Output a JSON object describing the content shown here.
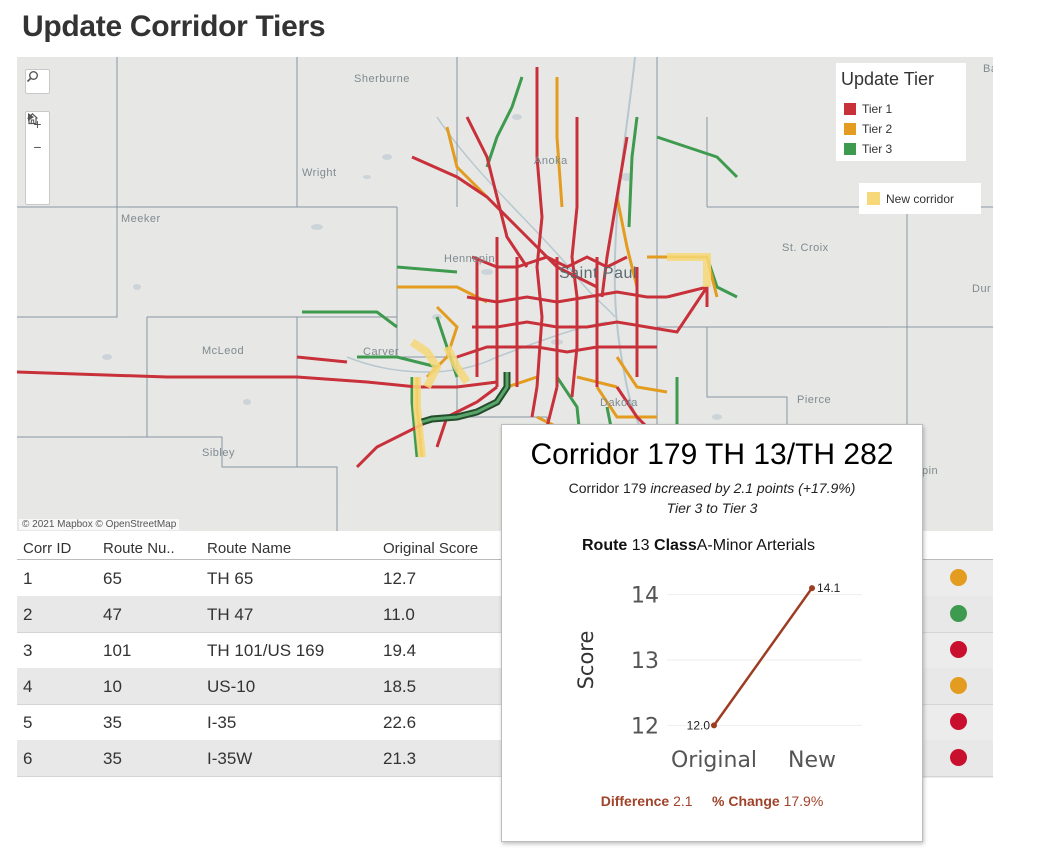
{
  "page": {
    "title": "Update Corridor Tiers"
  },
  "map": {
    "place_labels": [
      "Sherburne",
      "Anoka",
      "Wright",
      "Meeker",
      "Hennepin",
      "Saint Paul",
      "St. Croix",
      "McLeod",
      "Carver",
      "Dakota",
      "Pierce",
      "Sibley",
      "Ba",
      "Dur",
      "pin"
    ],
    "attribution": "© 2021 Mapbox  © OpenStreetMap",
    "controls": {
      "search_icon": "search-icon",
      "zoom_in": "+",
      "zoom_out": "−",
      "home_icon": "home-icon",
      "play_icon": "play-icon"
    },
    "legend": {
      "title": "Update Tier",
      "items": [
        {
          "label": "Tier 1",
          "color": "#c8303a"
        },
        {
          "label": "Tier 2",
          "color": "#e39c1f"
        },
        {
          "label": "Tier 3",
          "color": "#3e9a4e"
        }
      ]
    },
    "new_corridor_label": "New corridor",
    "colors": {
      "tier1": "#c8303a",
      "tier2": "#e39c1f",
      "tier3": "#3e9a4e",
      "new_corridor": "#f6d878"
    }
  },
  "table": {
    "headers": [
      "Corr ID",
      "Route Nu..",
      "Route Name",
      "Original Score"
    ],
    "rows": [
      {
        "id": "1",
        "route_num": "65",
        "route_name": "TH 65",
        "score": "12.7",
        "tier_color": "#e39c1f"
      },
      {
        "id": "2",
        "route_num": "47",
        "route_name": "TH 47",
        "score": "11.0",
        "tier_color": "#3e9a4e"
      },
      {
        "id": "3",
        "route_num": "101",
        "route_name": "TH 101/US 169",
        "score": "19.4",
        "tier_color": "#c8102e"
      },
      {
        "id": "4",
        "route_num": "10",
        "route_name": "US-10",
        "score": "18.5",
        "tier_color": "#e39c1f"
      },
      {
        "id": "5",
        "route_num": "35",
        "route_name": "I-35",
        "score": "22.6",
        "tier_color": "#c8102e"
      },
      {
        "id": "6",
        "route_num": "35",
        "route_name": "I-35W",
        "score": "21.3",
        "tier_color": "#c8102e"
      }
    ]
  },
  "tooltip": {
    "title": "Corridor 179 TH 13/TH 282",
    "subtitle_prefix": "Corridor 179",
    "subtitle_rest": "increased by 2.1 points (+17.9%)",
    "tier_line": "Tier 3 to Tier 3",
    "route_label": "Route",
    "route_value": "13",
    "class_label": "Class",
    "class_value": "A-Minor Arterials",
    "difference_label": "Difference",
    "difference_value": "2.1",
    "pct_label": "% Change",
    "pct_value": "17.9%"
  },
  "chart_data": {
    "type": "line",
    "categories": [
      "Original",
      "New"
    ],
    "series": [
      {
        "values": [
          12.0,
          14.1
        ]
      }
    ],
    "data_labels": [
      "12.0",
      "14.1"
    ],
    "ylabel": "Score",
    "yticks": [
      12,
      13,
      14
    ],
    "ylim": [
      11.7,
      14.3
    ],
    "grid": true,
    "line_color": "#9c3d22"
  }
}
